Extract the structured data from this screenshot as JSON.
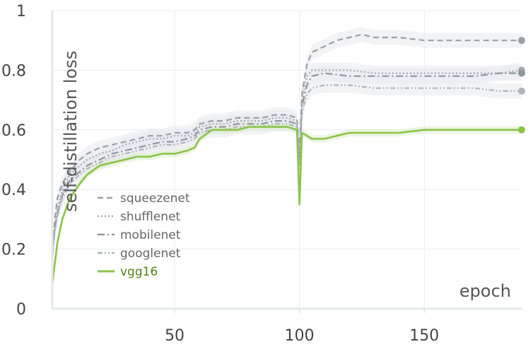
{
  "chart_data": {
    "type": "line",
    "ylabel": "self-distillation loss",
    "xlabel": "epoch",
    "xlim": [
      1,
      189
    ],
    "ylim": [
      0,
      1
    ],
    "x_ticks": [
      50,
      100,
      150
    ],
    "y_ticks": [
      0,
      0.2,
      0.4,
      0.6,
      0.8,
      1
    ],
    "x_tick_labels": [
      "50",
      "100",
      "150"
    ],
    "y_tick_labels": [
      "0",
      "0.2",
      "0.4",
      "0.6",
      "0.8",
      "1"
    ],
    "grid": true,
    "legend_position": "lower-left",
    "series": [
      {
        "name": "squeezenet",
        "color": "#9aa0a6",
        "dash": "long-dash",
        "points": [
          [
            1,
            0.15
          ],
          [
            2,
            0.3
          ],
          [
            3,
            0.37
          ],
          [
            5,
            0.42
          ],
          [
            8,
            0.46
          ],
          [
            12,
            0.5
          ],
          [
            15,
            0.52
          ],
          [
            20,
            0.54
          ],
          [
            25,
            0.55
          ],
          [
            30,
            0.56
          ],
          [
            35,
            0.57
          ],
          [
            40,
            0.58
          ],
          [
            45,
            0.58
          ],
          [
            50,
            0.59
          ],
          [
            55,
            0.59
          ],
          [
            58,
            0.6
          ],
          [
            60,
            0.62
          ],
          [
            65,
            0.63
          ],
          [
            70,
            0.63
          ],
          [
            75,
            0.64
          ],
          [
            80,
            0.64
          ],
          [
            85,
            0.64
          ],
          [
            90,
            0.65
          ],
          [
            95,
            0.65
          ],
          [
            99,
            0.64
          ],
          [
            100,
            0.52
          ],
          [
            101,
            0.72
          ],
          [
            103,
            0.82
          ],
          [
            105,
            0.86
          ],
          [
            110,
            0.88
          ],
          [
            115,
            0.9
          ],
          [
            120,
            0.91
          ],
          [
            125,
            0.92
          ],
          [
            130,
            0.91
          ],
          [
            140,
            0.91
          ],
          [
            150,
            0.9
          ],
          [
            160,
            0.9
          ],
          [
            170,
            0.9
          ],
          [
            180,
            0.9
          ],
          [
            189,
            0.9
          ]
        ]
      },
      {
        "name": "shufflenet",
        "color": "#a6abb0",
        "dash": "dotted",
        "points": [
          [
            1,
            0.2
          ],
          [
            2,
            0.28
          ],
          [
            3,
            0.33
          ],
          [
            5,
            0.4
          ],
          [
            8,
            0.45
          ],
          [
            12,
            0.48
          ],
          [
            15,
            0.5
          ],
          [
            20,
            0.52
          ],
          [
            25,
            0.53
          ],
          [
            30,
            0.55
          ],
          [
            35,
            0.56
          ],
          [
            40,
            0.57
          ],
          [
            45,
            0.57
          ],
          [
            50,
            0.58
          ],
          [
            55,
            0.58
          ],
          [
            58,
            0.59
          ],
          [
            60,
            0.61
          ],
          [
            65,
            0.62
          ],
          [
            70,
            0.62
          ],
          [
            75,
            0.63
          ],
          [
            80,
            0.63
          ],
          [
            85,
            0.63
          ],
          [
            90,
            0.64
          ],
          [
            95,
            0.64
          ],
          [
            99,
            0.63
          ],
          [
            100,
            0.5
          ],
          [
            101,
            0.7
          ],
          [
            103,
            0.78
          ],
          [
            105,
            0.8
          ],
          [
            110,
            0.8
          ],
          [
            120,
            0.8
          ],
          [
            130,
            0.79
          ],
          [
            140,
            0.79
          ],
          [
            150,
            0.79
          ],
          [
            160,
            0.79
          ],
          [
            170,
            0.79
          ],
          [
            180,
            0.79
          ],
          [
            189,
            0.8
          ]
        ]
      },
      {
        "name": "mobilenet",
        "color": "#8f969c",
        "dash": "dash-dot",
        "points": [
          [
            1,
            0.18
          ],
          [
            2,
            0.27
          ],
          [
            3,
            0.32
          ],
          [
            5,
            0.38
          ],
          [
            8,
            0.43
          ],
          [
            12,
            0.46
          ],
          [
            15,
            0.48
          ],
          [
            20,
            0.5
          ],
          [
            25,
            0.52
          ],
          [
            30,
            0.53
          ],
          [
            35,
            0.54
          ],
          [
            40,
            0.55
          ],
          [
            45,
            0.56
          ],
          [
            50,
            0.56
          ],
          [
            55,
            0.57
          ],
          [
            58,
            0.58
          ],
          [
            60,
            0.6
          ],
          [
            65,
            0.61
          ],
          [
            70,
            0.61
          ],
          [
            75,
            0.62
          ],
          [
            80,
            0.62
          ],
          [
            85,
            0.62
          ],
          [
            90,
            0.63
          ],
          [
            95,
            0.63
          ],
          [
            99,
            0.62
          ],
          [
            100,
            0.48
          ],
          [
            101,
            0.68
          ],
          [
            103,
            0.75
          ],
          [
            105,
            0.78
          ],
          [
            110,
            0.79
          ],
          [
            120,
            0.78
          ],
          [
            130,
            0.78
          ],
          [
            140,
            0.78
          ],
          [
            150,
            0.78
          ],
          [
            160,
            0.78
          ],
          [
            170,
            0.78
          ],
          [
            180,
            0.79
          ],
          [
            189,
            0.79
          ]
        ]
      },
      {
        "name": "googlenet",
        "color": "#b0b5ba",
        "dash": "dash-dot-dot",
        "points": [
          [
            1,
            0.17
          ],
          [
            2,
            0.26
          ],
          [
            3,
            0.31
          ],
          [
            5,
            0.37
          ],
          [
            8,
            0.42
          ],
          [
            12,
            0.45
          ],
          [
            15,
            0.47
          ],
          [
            20,
            0.49
          ],
          [
            25,
            0.51
          ],
          [
            30,
            0.52
          ],
          [
            35,
            0.53
          ],
          [
            40,
            0.54
          ],
          [
            45,
            0.55
          ],
          [
            50,
            0.55
          ],
          [
            55,
            0.56
          ],
          [
            58,
            0.57
          ],
          [
            60,
            0.59
          ],
          [
            65,
            0.6
          ],
          [
            70,
            0.6
          ],
          [
            75,
            0.61
          ],
          [
            80,
            0.61
          ],
          [
            85,
            0.61
          ],
          [
            90,
            0.62
          ],
          [
            95,
            0.62
          ],
          [
            99,
            0.61
          ],
          [
            100,
            0.47
          ],
          [
            101,
            0.66
          ],
          [
            103,
            0.72
          ],
          [
            105,
            0.74
          ],
          [
            110,
            0.75
          ],
          [
            120,
            0.75
          ],
          [
            130,
            0.74
          ],
          [
            140,
            0.74
          ],
          [
            150,
            0.74
          ],
          [
            160,
            0.74
          ],
          [
            170,
            0.74
          ],
          [
            180,
            0.73
          ],
          [
            189,
            0.73
          ]
        ]
      },
      {
        "name": "vgg16",
        "color": "#8bc34a",
        "dash": "solid",
        "points": [
          [
            1,
            0.08
          ],
          [
            2,
            0.15
          ],
          [
            3,
            0.22
          ],
          [
            5,
            0.3
          ],
          [
            8,
            0.37
          ],
          [
            12,
            0.42
          ],
          [
            15,
            0.45
          ],
          [
            20,
            0.48
          ],
          [
            25,
            0.49
          ],
          [
            30,
            0.5
          ],
          [
            35,
            0.51
          ],
          [
            40,
            0.51
          ],
          [
            45,
            0.52
          ],
          [
            50,
            0.52
          ],
          [
            55,
            0.53
          ],
          [
            58,
            0.54
          ],
          [
            60,
            0.57
          ],
          [
            65,
            0.6
          ],
          [
            70,
            0.6
          ],
          [
            75,
            0.6
          ],
          [
            80,
            0.61
          ],
          [
            85,
            0.61
          ],
          [
            90,
            0.61
          ],
          [
            95,
            0.61
          ],
          [
            99,
            0.6
          ],
          [
            100,
            0.35
          ],
          [
            101,
            0.59
          ],
          [
            103,
            0.58
          ],
          [
            105,
            0.57
          ],
          [
            110,
            0.57
          ],
          [
            115,
            0.58
          ],
          [
            120,
            0.59
          ],
          [
            130,
            0.59
          ],
          [
            140,
            0.59
          ],
          [
            150,
            0.6
          ],
          [
            160,
            0.6
          ],
          [
            170,
            0.6
          ],
          [
            180,
            0.6
          ],
          [
            189,
            0.6
          ]
        ]
      }
    ]
  }
}
